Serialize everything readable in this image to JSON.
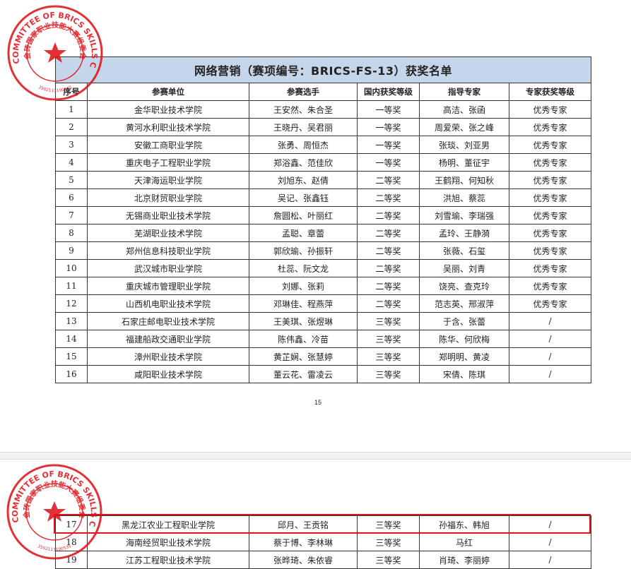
{
  "document": {
    "title": "网络营销（赛项编号：BRICS-FS-13）获奖名单",
    "page_number": "15",
    "columns": [
      "序号",
      "参赛单位",
      "参赛选手",
      "国内获奖等级",
      "指导专家",
      "专家获奖等级"
    ],
    "rows_page1": [
      [
        "1",
        "金华职业技术学院",
        "王安然、朱合圣",
        "一等奖",
        "高洁、张函",
        "优秀专家"
      ],
      [
        "2",
        "黄河水利职业技术学院",
        "王晓丹、吴君丽",
        "一等奖",
        "周爱荣、张之峰",
        "优秀专家"
      ],
      [
        "3",
        "安徽工商职业学院",
        "张勇、周恒杰",
        "一等奖",
        "张琰、刘亚男",
        "优秀专家"
      ],
      [
        "4",
        "重庆电子工程职业学院",
        "郑浴鑫、范佳欣",
        "一等奖",
        "杨明、董征宇",
        "优秀专家"
      ],
      [
        "5",
        "天津海运职业学院",
        "刘旭东、赵倩",
        "二等奖",
        "王鹤翔、何知秋",
        "优秀专家"
      ],
      [
        "6",
        "北京财贸职业学院",
        "吴记、张鑫钰",
        "二等奖",
        "洪旭、蔡蕊",
        "优秀专家"
      ],
      [
        "7",
        "无锡商业职业技术学院",
        "詹圆松、叶丽红",
        "二等奖",
        "刘雪瑜、李瑞强",
        "优秀专家"
      ],
      [
        "8",
        "芜湖职业技术学院",
        "孟聪、章蕾",
        "二等奖",
        "孟玲、王静漪",
        "优秀专家"
      ],
      [
        "9",
        "郑州信息科技职业学院",
        "郭欣瑜、孙振轩",
        "二等奖",
        "张薇、石玺",
        "优秀专家"
      ],
      [
        "10",
        "武汉城市职业学院",
        "杜蕊、阮文龙",
        "二等奖",
        "吴丽、刘青",
        "优秀专家"
      ],
      [
        "11",
        "重庆城市管理职业学院",
        "刘娜、张莉",
        "二等奖",
        "饶亮、查克玲",
        "优秀专家"
      ],
      [
        "12",
        "山西机电职业技术学院",
        "邓琳佳、程燕萍",
        "二等奖",
        "范志英、邢淑萍",
        "优秀专家"
      ],
      [
        "13",
        "石家庄邮电职业技术学院",
        "王美琪、张煜琳",
        "三等奖",
        "于含、张蕾",
        "/"
      ],
      [
        "14",
        "福建船政交通职业学院",
        "陈伟鑫、冷苗",
        "三等奖",
        "陈华、何欣梅",
        "/"
      ],
      [
        "15",
        "漳州职业技术学院",
        "黄芷娴、张慧婷",
        "三等奖",
        "郑明明、黄凌",
        "/"
      ],
      [
        "16",
        "咸阳职业技术学院",
        "董云花、雷凌云",
        "三等奖",
        "宋倩、陈琪",
        "/"
      ]
    ],
    "rows_page2": [
      [
        "17",
        "黑龙江农业工程职业学院",
        "邱月、王贡铭",
        "三等奖",
        "孙福东、韩旭",
        "/"
      ],
      [
        "18",
        "海南经贸职业技术学院",
        "蔡于博、李林琳",
        "三等奖",
        "马红",
        "/"
      ],
      [
        "19",
        "江苏工程职业技术学院",
        "张晔琦、朱依睿",
        "三等奖",
        "肖琦、李丽婷",
        "/"
      ]
    ],
    "highlighted_row": "17"
  },
  "seal": {
    "outer_text": "ORGANIZING COMMITTEE OF BRICS SKILLS COMPETITION",
    "inner_text": "金砖国家职业技能大赛组委会",
    "number": "3502111190535",
    "color": "#e0141a"
  },
  "colors": {
    "title_bg": "#c6d6ea",
    "highlight": "#e0141a"
  }
}
